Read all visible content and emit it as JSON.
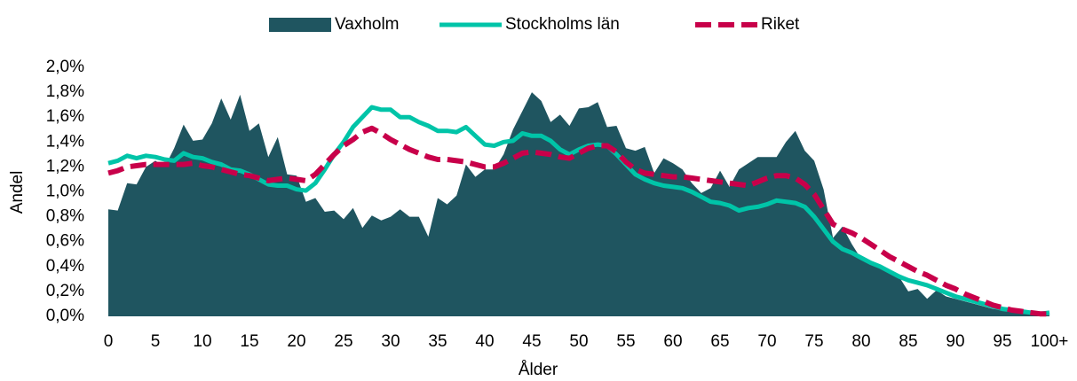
{
  "chart_data": {
    "type": "line",
    "xlabel": "Ålder",
    "ylabel": "Andel",
    "categories": [
      "0",
      null,
      null,
      null,
      null,
      "5",
      null,
      null,
      null,
      null,
      "10",
      null,
      null,
      null,
      null,
      "15",
      null,
      null,
      null,
      null,
      "20",
      null,
      null,
      null,
      null,
      "25",
      null,
      null,
      null,
      null,
      "30",
      null,
      null,
      null,
      null,
      "35",
      null,
      null,
      null,
      null,
      "40",
      null,
      null,
      null,
      null,
      "45",
      null,
      null,
      null,
      null,
      "50",
      null,
      null,
      null,
      null,
      "55",
      null,
      null,
      null,
      null,
      "60",
      null,
      null,
      null,
      null,
      "65",
      null,
      null,
      null,
      null,
      "70",
      null,
      null,
      null,
      null,
      "75",
      null,
      null,
      null,
      null,
      "80",
      null,
      null,
      null,
      null,
      "85",
      null,
      null,
      null,
      null,
      "90",
      null,
      null,
      null,
      null,
      "95",
      null,
      null,
      null,
      null,
      "100+"
    ],
    "ylim": [
      0,
      2.0
    ],
    "yticks": [
      {
        "value": 0,
        "label": "0,0%"
      },
      {
        "value": 0.2,
        "label": "0,2%"
      },
      {
        "value": 0.4,
        "label": "0,4%"
      },
      {
        "value": 0.6,
        "label": "0,6%"
      },
      {
        "value": 0.8,
        "label": "0,8%"
      },
      {
        "value": 1.0,
        "label": "1,0%"
      },
      {
        "value": 1.2,
        "label": "1,2%"
      },
      {
        "value": 1.4,
        "label": "1,4%"
      },
      {
        "value": 1.6,
        "label": "1,6%"
      },
      {
        "value": 1.8,
        "label": "1,8%"
      },
      {
        "value": 2.0,
        "label": "2,0%"
      }
    ],
    "legend": "top",
    "series": [
      {
        "name": "Vaxholm",
        "kind": "area",
        "color": "#1f5560",
        "values": [
          0.86,
          0.85,
          1.07,
          1.06,
          1.2,
          1.25,
          1.2,
          1.35,
          1.54,
          1.41,
          1.42,
          1.55,
          1.75,
          1.58,
          1.78,
          1.49,
          1.55,
          1.28,
          1.44,
          1.14,
          1.13,
          0.92,
          0.95,
          0.84,
          0.85,
          0.78,
          0.87,
          0.71,
          0.81,
          0.77,
          0.8,
          0.86,
          0.8,
          0.8,
          0.64,
          0.95,
          0.9,
          0.97,
          1.22,
          1.12,
          1.18,
          1.18,
          1.3,
          1.5,
          1.65,
          1.8,
          1.73,
          1.56,
          1.62,
          1.53,
          1.67,
          1.68,
          1.72,
          1.52,
          1.53,
          1.35,
          1.33,
          1.36,
          1.15,
          1.27,
          1.23,
          1.18,
          1.07,
          0.99,
          1.03,
          1.17,
          1.04,
          1.18,
          1.23,
          1.28,
          1.28,
          1.28,
          1.4,
          1.49,
          1.33,
          1.25,
          1.02,
          0.63,
          0.72,
          0.58,
          0.46,
          0.42,
          0.4,
          0.36,
          0.32,
          0.2,
          0.22,
          0.14,
          0.21,
          0.16,
          0.14,
          0.12,
          0.1,
          0.08,
          0.06,
          0.05,
          0.04,
          0.03,
          0.02,
          0.01,
          0.01
        ]
      },
      {
        "name": "Stockholms län",
        "kind": "solid",
        "color": "#00c4a8",
        "values": [
          1.23,
          1.25,
          1.29,
          1.27,
          1.29,
          1.28,
          1.26,
          1.25,
          1.31,
          1.28,
          1.27,
          1.24,
          1.22,
          1.18,
          1.17,
          1.14,
          1.1,
          1.06,
          1.05,
          1.05,
          1.02,
          1.01,
          1.07,
          1.18,
          1.3,
          1.4,
          1.52,
          1.6,
          1.68,
          1.66,
          1.66,
          1.6,
          1.6,
          1.56,
          1.53,
          1.49,
          1.49,
          1.48,
          1.52,
          1.45,
          1.38,
          1.37,
          1.4,
          1.41,
          1.47,
          1.45,
          1.45,
          1.41,
          1.34,
          1.3,
          1.34,
          1.37,
          1.38,
          1.37,
          1.3,
          1.22,
          1.14,
          1.1,
          1.07,
          1.05,
          1.04,
          1.03,
          1.0,
          0.96,
          0.92,
          0.91,
          0.89,
          0.85,
          0.87,
          0.88,
          0.9,
          0.93,
          0.92,
          0.91,
          0.88,
          0.8,
          0.7,
          0.6,
          0.54,
          0.51,
          0.47,
          0.43,
          0.4,
          0.36,
          0.32,
          0.29,
          0.27,
          0.25,
          0.22,
          0.19,
          0.16,
          0.14,
          0.12,
          0.1,
          0.08,
          0.06,
          0.05,
          0.04,
          0.03,
          0.02,
          0.03
        ]
      },
      {
        "name": "Riket",
        "kind": "dashed",
        "color": "#c8004a",
        "values": [
          1.15,
          1.17,
          1.2,
          1.21,
          1.22,
          1.22,
          1.22,
          1.22,
          1.22,
          1.23,
          1.21,
          1.2,
          1.18,
          1.16,
          1.14,
          1.13,
          1.11,
          1.09,
          1.1,
          1.11,
          1.1,
          1.09,
          1.14,
          1.22,
          1.3,
          1.37,
          1.42,
          1.48,
          1.51,
          1.47,
          1.42,
          1.38,
          1.34,
          1.31,
          1.28,
          1.26,
          1.26,
          1.25,
          1.24,
          1.22,
          1.2,
          1.2,
          1.23,
          1.27,
          1.31,
          1.32,
          1.31,
          1.3,
          1.28,
          1.27,
          1.31,
          1.35,
          1.37,
          1.37,
          1.32,
          1.24,
          1.18,
          1.15,
          1.14,
          1.13,
          1.12,
          1.12,
          1.11,
          1.1,
          1.09,
          1.08,
          1.07,
          1.06,
          1.05,
          1.08,
          1.11,
          1.13,
          1.13,
          1.11,
          1.06,
          0.98,
          0.86,
          0.74,
          0.7,
          0.67,
          0.63,
          0.58,
          0.53,
          0.48,
          0.44,
          0.4,
          0.36,
          0.33,
          0.29,
          0.25,
          0.22,
          0.18,
          0.15,
          0.12,
          0.09,
          0.07,
          0.05,
          0.04,
          0.03,
          0.02,
          0.02
        ]
      }
    ]
  }
}
